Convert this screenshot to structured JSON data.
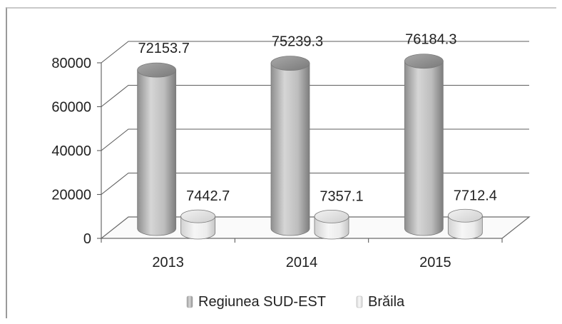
{
  "chart_data": {
    "type": "bar",
    "style": "3d-cylinder",
    "categories": [
      "2013",
      "2014",
      "2015"
    ],
    "series": [
      {
        "name": "Regiunea SUD-EST",
        "values": [
          72153.7,
          75239.3,
          76184.3
        ],
        "labels": [
          "72153.7",
          "75239.3",
          "76184.3"
        ],
        "color": "#b8b8b8"
      },
      {
        "name": "Brăila",
        "values": [
          7442.7,
          7357.1,
          7712.4
        ],
        "labels": [
          "7442.7",
          "7357.1",
          "7712.4"
        ],
        "color": "#e8e8e8"
      }
    ],
    "yticks": [
      "0",
      "20000",
      "40000",
      "60000",
      "80000"
    ],
    "ylim": [
      0,
      80000
    ],
    "grid": true,
    "legend_position": "bottom"
  }
}
